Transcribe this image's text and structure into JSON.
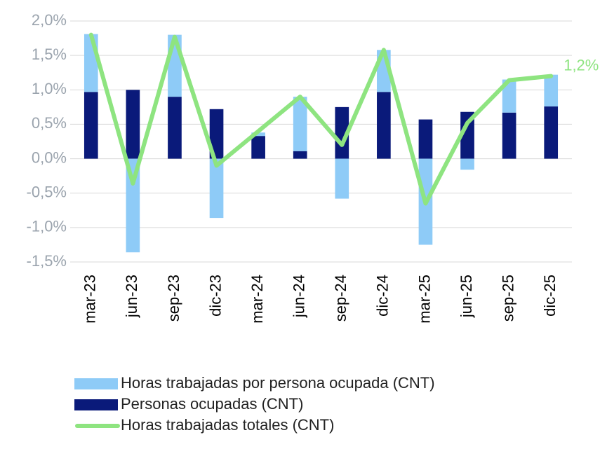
{
  "chart_data": {
    "type": "bar",
    "stacked": true,
    "categories": [
      "mar-23",
      "jun-23",
      "sep-23",
      "dic-23",
      "mar-24",
      "jun-24",
      "sep-24",
      "dic-24",
      "mar-25",
      "jun-25",
      "sep-25",
      "dic-25"
    ],
    "series": [
      {
        "name": "Horas trabajadas por persona ocupada (CNT)",
        "type": "bar",
        "color": "#8ecbf7",
        "values": [
          0.84,
          -1.36,
          0.9,
          -0.86,
          0.05,
          0.79,
          -0.58,
          0.61,
          -1.25,
          -0.16,
          0.48,
          0.46
        ]
      },
      {
        "name": "Personas ocupadas (CNT)",
        "type": "bar",
        "color": "#0a1a7a",
        "values": [
          0.97,
          1.0,
          0.9,
          0.72,
          0.33,
          0.11,
          0.75,
          0.97,
          0.57,
          0.68,
          0.67,
          0.76
        ]
      },
      {
        "name": "Horas trabajadas totales (CNT)",
        "type": "line",
        "color": "#8ee480",
        "values": [
          1.8,
          -0.36,
          1.77,
          -0.1,
          0.4,
          0.9,
          0.2,
          1.58,
          -0.65,
          0.52,
          1.14,
          1.2
        ],
        "value_labels": [
          null,
          null,
          null,
          null,
          null,
          null,
          null,
          null,
          null,
          null,
          null,
          "1,2%"
        ]
      }
    ],
    "ylim": [
      -1.5,
      2.0
    ],
    "yticks": [
      {
        "value": -1.5,
        "label": "-1,5%"
      },
      {
        "value": -1.0,
        "label": "-1,0%"
      },
      {
        "value": -0.5,
        "label": "-0,5%"
      },
      {
        "value": 0,
        "label": "0,0%"
      },
      {
        "value": 0.5,
        "label": "0,5%"
      },
      {
        "value": 1.0,
        "label": "1,0%"
      },
      {
        "value": 1.5,
        "label": "1,5%"
      },
      {
        "value": 2.0,
        "label": "2,0%"
      }
    ],
    "grid": true
  }
}
